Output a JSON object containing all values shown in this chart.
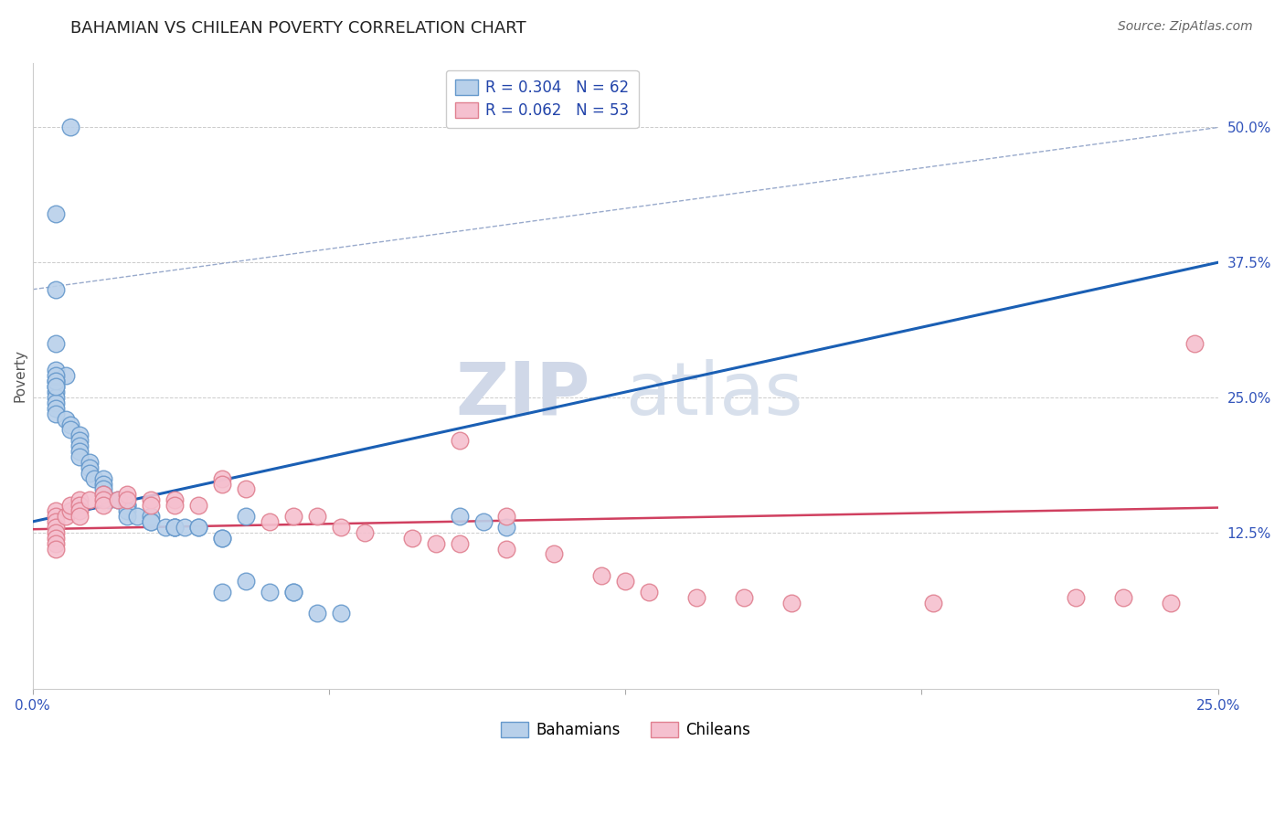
{
  "title": "BAHAMIAN VS CHILEAN POVERTY CORRELATION CHART",
  "source": "Source: ZipAtlas.com",
  "ylabel": "Poverty",
  "xlim": [
    0.0,
    0.25
  ],
  "ylim": [
    -0.02,
    0.56
  ],
  "yticks_right": [
    0.125,
    0.25,
    0.375,
    0.5
  ],
  "yticklabels_right": [
    "12.5%",
    "25.0%",
    "37.5%",
    "50.0%"
  ],
  "bahamian_color": "#b8d0ea",
  "bahamian_edge_color": "#6699cc",
  "chilean_color": "#f5c0cf",
  "chilean_edge_color": "#e08090",
  "blue_line_color": "#1a5fb4",
  "pink_line_color": "#d04060",
  "diag_line_color": "#99aacc",
  "grid_color": "#cccccc",
  "legend_label_blue": "Bahamians",
  "legend_label_pink": "Chileans",
  "title_fontsize": 13,
  "axis_label_fontsize": 11,
  "tick_fontsize": 11,
  "source_fontsize": 10,
  "watermark_zip": "ZIP",
  "watermark_atlas": "atlas",
  "blue_line_x": [
    0.0,
    0.25
  ],
  "blue_line_y": [
    0.135,
    0.375
  ],
  "pink_line_x": [
    0.0,
    0.25
  ],
  "pink_line_y": [
    0.128,
    0.148
  ],
  "diag_line_x": [
    0.0,
    0.25
  ],
  "diag_line_y": [
    0.35,
    0.5
  ],
  "bahamian_x": [
    0.008,
    0.005,
    0.005,
    0.005,
    0.007,
    0.005,
    0.005,
    0.005,
    0.005,
    0.005,
    0.005,
    0.005,
    0.007,
    0.008,
    0.008,
    0.01,
    0.01,
    0.01,
    0.01,
    0.01,
    0.012,
    0.012,
    0.012,
    0.013,
    0.015,
    0.015,
    0.015,
    0.015,
    0.016,
    0.018,
    0.02,
    0.02,
    0.02,
    0.02,
    0.022,
    0.025,
    0.025,
    0.025,
    0.028,
    0.03,
    0.03,
    0.03,
    0.032,
    0.035,
    0.035,
    0.04,
    0.04,
    0.04,
    0.045,
    0.045,
    0.05,
    0.055,
    0.055,
    0.06,
    0.065,
    0.09,
    0.095,
    0.1,
    0.005,
    0.005,
    0.005,
    0.005
  ],
  "bahamian_y": [
    0.5,
    0.42,
    0.3,
    0.275,
    0.27,
    0.265,
    0.26,
    0.255,
    0.25,
    0.245,
    0.24,
    0.235,
    0.23,
    0.225,
    0.22,
    0.215,
    0.21,
    0.205,
    0.2,
    0.195,
    0.19,
    0.185,
    0.18,
    0.175,
    0.175,
    0.17,
    0.165,
    0.16,
    0.155,
    0.155,
    0.15,
    0.15,
    0.145,
    0.14,
    0.14,
    0.14,
    0.135,
    0.135,
    0.13,
    0.13,
    0.13,
    0.13,
    0.13,
    0.13,
    0.13,
    0.12,
    0.12,
    0.07,
    0.14,
    0.08,
    0.07,
    0.07,
    0.07,
    0.05,
    0.05,
    0.14,
    0.135,
    0.13,
    0.35,
    0.27,
    0.265,
    0.26
  ],
  "chilean_x": [
    0.005,
    0.005,
    0.005,
    0.005,
    0.005,
    0.005,
    0.005,
    0.005,
    0.007,
    0.008,
    0.008,
    0.01,
    0.01,
    0.01,
    0.01,
    0.012,
    0.015,
    0.015,
    0.015,
    0.018,
    0.02,
    0.02,
    0.025,
    0.025,
    0.03,
    0.03,
    0.035,
    0.04,
    0.04,
    0.045,
    0.05,
    0.055,
    0.06,
    0.065,
    0.07,
    0.08,
    0.085,
    0.09,
    0.09,
    0.1,
    0.1,
    0.11,
    0.12,
    0.125,
    0.13,
    0.14,
    0.15,
    0.16,
    0.19,
    0.22,
    0.23,
    0.24,
    0.245
  ],
  "chilean_y": [
    0.145,
    0.14,
    0.135,
    0.13,
    0.125,
    0.12,
    0.115,
    0.11,
    0.14,
    0.145,
    0.15,
    0.155,
    0.15,
    0.145,
    0.14,
    0.155,
    0.16,
    0.155,
    0.15,
    0.155,
    0.16,
    0.155,
    0.155,
    0.15,
    0.155,
    0.15,
    0.15,
    0.175,
    0.17,
    0.165,
    0.135,
    0.14,
    0.14,
    0.13,
    0.125,
    0.12,
    0.115,
    0.115,
    0.21,
    0.14,
    0.11,
    0.105,
    0.085,
    0.08,
    0.07,
    0.065,
    0.065,
    0.06,
    0.06,
    0.065,
    0.065,
    0.06,
    0.3
  ]
}
